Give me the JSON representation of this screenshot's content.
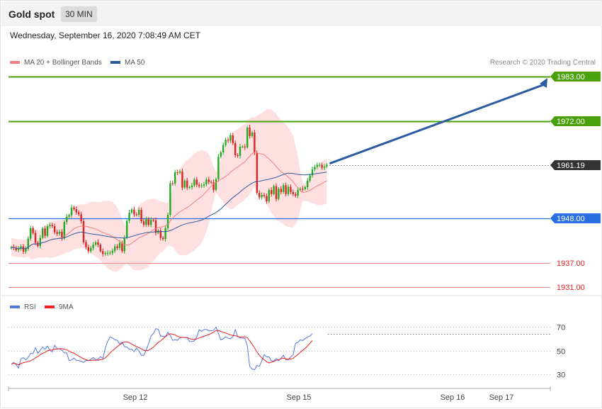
{
  "header": {
    "title": "Gold spot",
    "timeframe": "30 MIN"
  },
  "timestamp": "Wednesday, September 16, 2020 7:08:49 AM CET",
  "legend": {
    "ma20": "MA 20 + Bollinger Bands",
    "ma50": "MA 50",
    "credit": "Research © 2020 Trading Central"
  },
  "rsi_legend": {
    "rsi": "RSI",
    "ma9": "9MA"
  },
  "colors": {
    "ma20": "#f08080",
    "ma50": "#2e5aa0",
    "band": "#ffd6d6",
    "up": "#22aa22",
    "down": "#dd2222",
    "resistance": "#4aa00a",
    "support_blue": "#2a6ee0",
    "support_red": "#ee8888",
    "rsi": "#5577dd",
    "rsi_ma": "#ee2222",
    "arrow": "#2c5aa0",
    "current": "#333333"
  },
  "chart_data": [
    {
      "type": "candlestick",
      "title": "Gold spot",
      "ylim": [
        1927,
        1987
      ],
      "x_tick_labels": [
        "Sep 12",
        "Sep 15",
        "Sep 16",
        "Sep 17"
      ],
      "levels": [
        {
          "label": "1983.00",
          "value": 1983.0,
          "kind": "resistance"
        },
        {
          "label": "1972.00",
          "value": 1972.0,
          "kind": "resistance"
        },
        {
          "label": "1961.19",
          "value": 1961.19,
          "kind": "current"
        },
        {
          "label": "1948.00",
          "value": 1948.0,
          "kind": "support"
        },
        {
          "label": "1937.00",
          "value": 1937.0,
          "kind": "support-minor"
        },
        {
          "label": "1931.00",
          "value": 1931.0,
          "kind": "support-minor"
        }
      ],
      "close": [
        1940.9,
        1940.8,
        1940.2,
        1940.5,
        1941.1,
        1939.8,
        1940.5,
        1943.0,
        1945.6,
        1944.4,
        1942.0,
        1941.2,
        1943.2,
        1945.5,
        1943.7,
        1946.1,
        1946.4,
        1946.1,
        1944.6,
        1944.2,
        1944.7,
        1943.1,
        1947.1,
        1948.4,
        1948.8,
        1950.7,
        1950.3,
        1949.5,
        1949.0,
        1947.3,
        1942.1,
        1940.9,
        1939.9,
        1940.7,
        1941.5,
        1942.1,
        1941.5,
        1939.9,
        1939.2,
        1939.4,
        1939.5,
        1939.5,
        1940.0,
        1941.1,
        1940.7,
        1942.0,
        1939.9,
        1943.2,
        1947.4,
        1949.4,
        1950.2,
        1949.0,
        1948.9,
        1950.1,
        1947.3,
        1946.4,
        1947.8,
        1946.4,
        1947.6,
        1947.5,
        1944.4,
        1945.0,
        1943.2,
        1942.9,
        1945.6,
        1948.9,
        1956.7,
        1956.6,
        1959.4,
        1959.3,
        1959.6,
        1955.6,
        1957.3,
        1955.6,
        1955.7,
        1956.1,
        1957.6,
        1956.3,
        1956.0,
        1956.1,
        1956.4,
        1957.6,
        1957.0,
        1956.9,
        1955.0,
        1957.7,
        1963.2,
        1964.3,
        1966.1,
        1967.4,
        1967.2,
        1968.5,
        1966.6,
        1963.6,
        1963.4,
        1965.7,
        1965.7,
        1965.5,
        1970.4,
        1968.3,
        1969.2,
        1964.2,
        1954.3,
        1953.2,
        1953.8,
        1953.5,
        1952.2,
        1955.0,
        1954.0,
        1956.0,
        1952.8,
        1955.3,
        1954.5,
        1956.2,
        1954.0,
        1955.8,
        1954.5,
        1954.0,
        1953.6,
        1955.0,
        1955.3,
        1955.2,
        1955.7,
        1957.3,
        1958.6,
        1960.1,
        1960.7,
        1961.2,
        1961.2,
        1960.5,
        1960.8,
        1961.19
      ],
      "rsi": [
        38.5,
        40.0,
        38.0,
        35.2,
        43.1,
        44.0,
        42.1,
        44.3,
        47.6,
        47.3,
        52.4,
        47.7,
        50.3,
        52.9,
        51.0,
        53.7,
        50.1,
        48.8,
        54.4,
        51.6,
        51.4,
        50.2,
        48.0,
        48.0,
        41.6,
        42.0,
        43.7,
        41.7,
        41.4,
        40.9,
        39.9,
        41.7,
        41.5,
        42.6,
        44.1,
        42.4,
        42.6,
        44.8,
        43.3,
        51.9,
        57.9,
        61.3,
        60.6,
        59.0,
        58.6,
        55.4,
        57.2,
        53.3,
        52.9,
        51.0,
        51.1,
        49.1,
        52.2,
        49.6,
        46.0,
        46.0,
        50.4,
        55.7,
        62.1,
        64.3,
        68.4,
        68.0,
        62.0,
        62.2,
        61.9,
        65.4,
        62.7,
        58.6,
        59.0,
        58.6,
        60.6,
        61.1,
        60.8,
        61.1,
        57.6,
        57.5,
        58.2,
        61.4,
        67.5,
        66.2,
        67.6,
        67.8,
        66.6,
        66.7,
        67.0,
        69.7,
        64.3,
        58.9,
        60.0,
        61.5,
        60.3,
        60.0,
        61.7,
        67.6,
        61.8,
        60.5,
        60.5,
        60.3,
        54.0,
        36.6,
        34.3,
        33.9,
        37.4,
        36.7,
        41.2,
        46.5,
        44.6,
        44.6,
        41.2,
        41.2,
        43.2,
        41.3,
        43.5,
        46.0,
        42.2,
        42.2,
        44.7,
        46.3,
        56.0,
        56.9,
        58.9,
        58.5,
        60.0,
        61.5,
        62.1,
        64.3
      ],
      "rsi_ticks": [
        30,
        50,
        70
      ]
    }
  ]
}
